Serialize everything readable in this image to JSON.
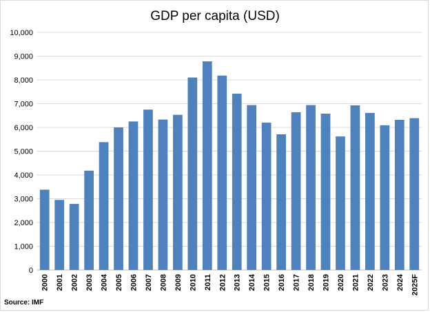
{
  "source_note": "Source: IMF",
  "chart_data": {
    "type": "bar",
    "title": "GDP per capita (USD)",
    "xlabel": "",
    "ylabel": "",
    "ylim": [
      0,
      10000
    ],
    "yticks": [
      "0",
      "1,000",
      "2,000",
      "3,000",
      "4,000",
      "5,000",
      "6,000",
      "7,000",
      "8,000",
      "9,000",
      "10,000"
    ],
    "grid": true,
    "bar_color": "#4f81bd",
    "categories": [
      "2000",
      "2001",
      "2002",
      "2003",
      "2004",
      "2005",
      "2006",
      "2007",
      "2008",
      "2009",
      "2010",
      "2011",
      "2012",
      "2013",
      "2014",
      "2015",
      "2016",
      "2017",
      "2018",
      "2019",
      "2020",
      "2021",
      "2022",
      "2023",
      "2024",
      "2025F"
    ],
    "values": [
      3380,
      2950,
      2780,
      4180,
      5380,
      6000,
      6250,
      6750,
      6330,
      6530,
      8100,
      8780,
      8180,
      7420,
      6940,
      6200,
      5710,
      6640,
      6940,
      6580,
      5620,
      6930,
      6610,
      6090,
      6320,
      6390
    ]
  }
}
